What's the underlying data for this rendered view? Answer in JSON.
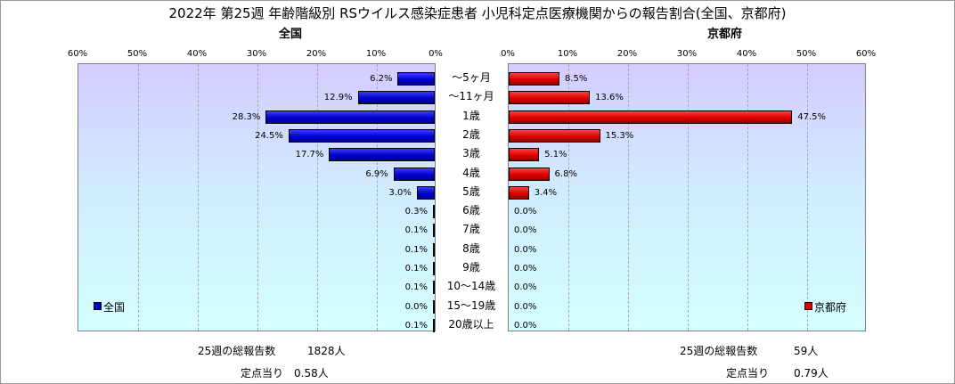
{
  "title": "2022年 第25週 年齢階級別 RSウイルス感染症患者 小児科定点医療機関からの報告割合(全国、京都府)",
  "colors": {
    "national": "#0000cc",
    "kyoto": "#dd0000",
    "plot_bg_top": "#d4ccff",
    "plot_bg_bottom": "#d4ffff"
  },
  "chart_data": {
    "type": "bar",
    "orientation": "horizontal",
    "categories": [
      "～5ヶ月",
      "～11ヶ月",
      "1歳",
      "2歳",
      "3歳",
      "4歳",
      "5歳",
      "6歳",
      "7歳",
      "8歳",
      "9歳",
      "10～14歳",
      "15～19歳",
      "20歳以上"
    ],
    "xlim": [
      0,
      60
    ],
    "ticks": [
      "60%",
      "50%",
      "40%",
      "30%",
      "20%",
      "10%",
      "0%"
    ],
    "ticks_right": [
      "0%",
      "10%",
      "20%",
      "30%",
      "40%",
      "50%",
      "60%"
    ],
    "grid": true,
    "series": [
      {
        "name": "全国",
        "panel_title": "全国",
        "direction": "left",
        "values": [
          6.2,
          12.9,
          28.3,
          24.5,
          17.7,
          6.9,
          3.0,
          0.3,
          0.1,
          0.1,
          0.1,
          0.1,
          0.0,
          0.1
        ],
        "labels": [
          "6.2%",
          "12.9%",
          "28.3%",
          "24.5%",
          "17.7%",
          "6.9%",
          "3.0%",
          "0.3%",
          "0.1%",
          "0.1%",
          "0.1%",
          "0.1%",
          "0.0%",
          "0.1%"
        ],
        "legend_position": "bottom-left"
      },
      {
        "name": "京都府",
        "panel_title": "京都府",
        "direction": "right",
        "values": [
          8.5,
          13.6,
          47.5,
          15.3,
          5.1,
          6.8,
          3.4,
          0.0,
          0.0,
          0.0,
          0.0,
          0.0,
          0.0,
          0.0
        ],
        "labels": [
          "8.5%",
          "13.6%",
          "47.5%",
          "15.3%",
          "5.1%",
          "6.8%",
          "3.4%",
          "0.0%",
          "0.0%",
          "0.0%",
          "0.0%",
          "0.0%",
          "0.0%",
          "0.0%"
        ],
        "legend_position": "bottom-right"
      }
    ]
  },
  "footer": {
    "national": {
      "total_label": "25週の総報告数",
      "total_value": "1828人",
      "per_label": "定点当り",
      "per_value": "0.58人"
    },
    "kyoto": {
      "total_label": "25週の総報告数",
      "total_value": "59人",
      "per_label": "定点当り",
      "per_value": "0.79人"
    }
  }
}
